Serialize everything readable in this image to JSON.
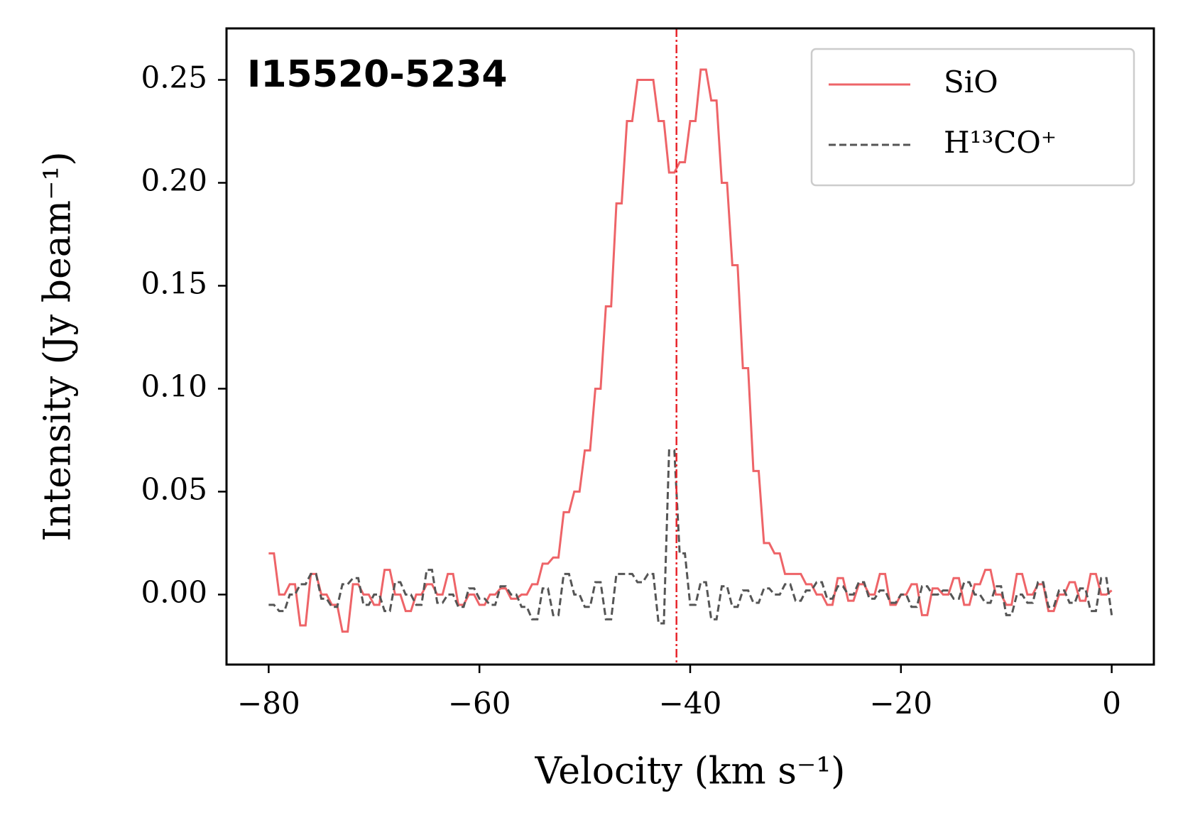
{
  "chart_data": {
    "type": "line",
    "annotation": "I15520-5234",
    "xlabel": "Velocity (km s⁻¹)",
    "ylabel": "Intensity (Jy beam⁻¹)",
    "x": [
      -80,
      -79,
      -78,
      -77,
      -76,
      -75,
      -74,
      -73,
      -72,
      -71,
      -70,
      -69,
      -68,
      -67,
      -66,
      -65,
      -64,
      -63,
      -62,
      -61,
      -60,
      -59,
      -58,
      -57,
      -56,
      -55,
      -54,
      -53,
      -52,
      -51,
      -50,
      -49,
      -48,
      -47,
      -46,
      -45,
      -44,
      -43,
      -42,
      -41,
      -40,
      -39,
      -38,
      -37,
      -36,
      -35,
      -34,
      -33,
      -32,
      -31,
      -30,
      -29,
      -28,
      -27,
      -26,
      -25,
      -24,
      -23,
      -22,
      -21,
      -20,
      -19,
      -18,
      -17,
      -16,
      -15,
      -14,
      -13,
      -12,
      -11,
      -10,
      -9,
      -8,
      -7,
      -6,
      -5,
      -4,
      -3,
      -2,
      -1,
      0
    ],
    "series": [
      {
        "name": "SiO",
        "color": "#ee6468",
        "dash": "solid",
        "values": [
          0.02,
          0.0,
          0.005,
          -0.015,
          0.01,
          0.0,
          -0.005,
          -0.018,
          0.005,
          0.0,
          -0.005,
          0.012,
          0.0,
          -0.008,
          0.0,
          0.005,
          0.0,
          0.01,
          -0.005,
          0.0,
          -0.005,
          0.0,
          0.003,
          -0.002,
          0.0,
          0.005,
          0.015,
          0.018,
          0.04,
          0.05,
          0.07,
          0.1,
          0.14,
          0.19,
          0.23,
          0.25,
          0.25,
          0.23,
          0.205,
          0.21,
          0.23,
          0.255,
          0.24,
          0.2,
          0.16,
          0.11,
          0.06,
          0.025,
          0.02,
          0.01,
          0.01,
          0.005,
          0.0,
          -0.005,
          0.008,
          -0.003,
          0.005,
          0.0,
          0.01,
          -0.005,
          0.0,
          0.005,
          -0.01,
          0.003,
          0.0,
          0.008,
          -0.005,
          0.005,
          0.012,
          0.0,
          -0.005,
          0.01,
          0.0,
          0.005,
          -0.008,
          0.0,
          0.006,
          -0.003,
          0.01,
          0.0,
          0.002
        ]
      },
      {
        "name": "H¹³CO⁺",
        "color": "#555555",
        "dash": "dashed",
        "values": [
          -0.005,
          -0.008,
          0.0,
          0.005,
          0.01,
          -0.002,
          -0.006,
          0.005,
          0.008,
          -0.005,
          0.0,
          -0.008,
          0.006,
          0.0,
          -0.005,
          0.012,
          -0.004,
          0.0,
          -0.006,
          0.003,
          -0.002,
          -0.005,
          0.004,
          0.0,
          -0.006,
          -0.012,
          0.003,
          -0.01,
          0.01,
          0.0,
          -0.006,
          0.006,
          -0.012,
          0.01,
          0.01,
          0.006,
          0.01,
          -0.014,
          0.07,
          0.02,
          -0.005,
          0.006,
          -0.012,
          0.004,
          -0.006,
          0.002,
          -0.004,
          0.003,
          0.0,
          0.005,
          -0.003,
          0.002,
          0.006,
          -0.002,
          0.004,
          0.0,
          0.006,
          -0.002,
          0.002,
          -0.004,
          0.0,
          -0.006,
          0.004,
          0.0,
          0.002,
          -0.002,
          0.006,
          0.0,
          -0.004,
          0.004,
          -0.01,
          0.0,
          -0.004,
          0.006,
          -0.006,
          0.002,
          -0.004,
          0.003,
          -0.008,
          0.008,
          -0.01
        ]
      }
    ],
    "vline": {
      "x": -41.3,
      "color": "#e8262c"
    },
    "xlim": [
      -84,
      4
    ],
    "xticks": [
      {
        "value": -80,
        "label": "−80"
      },
      {
        "value": -60,
        "label": "−60"
      },
      {
        "value": -40,
        "label": "−40"
      },
      {
        "value": -20,
        "label": "−20"
      },
      0
    ],
    "ylim": [
      -0.034,
      0.275
    ],
    "yticks": [
      {
        "value": 0,
        "label": "0.00"
      },
      0.05,
      {
        "value": 0.1,
        "label": "0.10"
      },
      0.15,
      {
        "value": 0.2,
        "label": "0.20"
      },
      0.25
    ],
    "legend": "upper right",
    "grid": false
  }
}
